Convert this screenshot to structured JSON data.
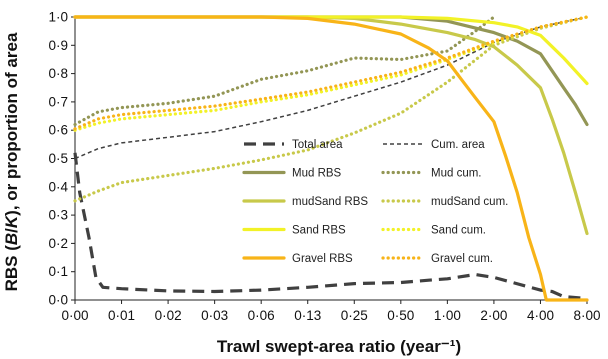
{
  "chart_data": {
    "type": "line",
    "xlabel": "Trawl swept-area ratio (year⁻¹)",
    "ylabel_parts": [
      "RBS (",
      "B",
      "/",
      "K",
      "), or proportion of area"
    ],
    "x_ticks": [
      "0·00",
      "0·01",
      "0·02",
      "0·03",
      "0·06",
      "0·13",
      "0·25",
      "0·50",
      "1·00",
      "2·00",
      "4·00",
      "8·00"
    ],
    "y_ticks": [
      "0·0",
      "0·1",
      "0·2",
      "0·3",
      "0·4",
      "0·5",
      "0·6",
      "0·7",
      "0·8",
      "0·9",
      "1·0"
    ],
    "x_tick_values": [
      0,
      0.01,
      0.02,
      0.03,
      0.06,
      0.13,
      0.25,
      0.5,
      1.0,
      2.0,
      4.0,
      8.0
    ],
    "ylim": [
      0,
      1
    ],
    "grid": false,
    "legend_position": "center-right",
    "series": [
      {
        "name": "Total area",
        "color": "#404040",
        "dash": "long-dash",
        "x": [
          0,
          0.001,
          0.003,
          0.0045,
          0.006,
          0.01,
          0.02,
          0.03,
          0.06,
          0.13,
          0.25,
          0.5,
          0.8,
          1.0,
          1.6,
          2.0,
          4.0,
          5.0,
          6.0,
          8.0
        ],
        "y": [
          0.52,
          0.38,
          0.22,
          0.08,
          0.045,
          0.04,
          0.032,
          0.03,
          0.035,
          0.045,
          0.058,
          0.062,
          0.07,
          0.075,
          0.09,
          0.08,
          0.035,
          0.03,
          0.012,
          0.005
        ]
      },
      {
        "name": "Cum. area",
        "color": "#404040",
        "dash": "short-dash",
        "x": [
          0,
          0.005,
          0.01,
          0.02,
          0.03,
          0.06,
          0.13,
          0.25,
          0.5,
          1.0,
          2.0,
          4.0,
          8.0
        ],
        "y": [
          0.5,
          0.535,
          0.555,
          0.575,
          0.595,
          0.63,
          0.67,
          0.72,
          0.77,
          0.83,
          0.91,
          0.965,
          1.0
        ]
      },
      {
        "name": "Mud RBS",
        "color": "#939655",
        "dash": "solid",
        "x": [
          0,
          0.5,
          1.0,
          2.0,
          3.0,
          4.0,
          5.0,
          6.0,
          7.0,
          8.0
        ],
        "y": [
          1.0,
          1.0,
          0.985,
          0.945,
          0.915,
          0.87,
          0.81,
          0.75,
          0.69,
          0.62
        ]
      },
      {
        "name": "Mud cum.",
        "color": "#939655",
        "dash": "dot",
        "x": [
          0,
          0.005,
          0.01,
          0.02,
          0.03,
          0.06,
          0.13,
          0.25,
          0.5,
          1.0,
          1.6,
          2.0
        ],
        "y": [
          0.62,
          0.665,
          0.68,
          0.695,
          0.72,
          0.78,
          0.81,
          0.855,
          0.85,
          0.88,
          0.95,
          1.0
        ]
      },
      {
        "name": "mudSand RBS",
        "color": "#c8c94a",
        "dash": "solid",
        "x": [
          0,
          0.13,
          0.25,
          0.5,
          1.0,
          1.6,
          2.0,
          3.0,
          4.0,
          5.0,
          6.0,
          7.0,
          8.0
        ],
        "y": [
          1.0,
          1.0,
          0.995,
          0.975,
          0.945,
          0.92,
          0.895,
          0.83,
          0.75,
          0.64,
          0.52,
          0.38,
          0.235
        ]
      },
      {
        "name": "mudSand cum.",
        "color": "#c8c94a",
        "dash": "dot",
        "x": [
          0,
          0.005,
          0.01,
          0.02,
          0.03,
          0.06,
          0.13,
          0.25,
          0.5,
          1.0,
          2.0,
          4.0,
          8.0
        ],
        "y": [
          0.35,
          0.385,
          0.415,
          0.44,
          0.465,
          0.495,
          0.53,
          0.59,
          0.66,
          0.77,
          0.9,
          0.96,
          1.0
        ]
      },
      {
        "name": "Sand RBS",
        "color": "#f2f227",
        "dash": "solid",
        "x": [
          0,
          0.5,
          1.0,
          2.0,
          3.0,
          4.0,
          5.0,
          6.0,
          7.0,
          8.0
        ],
        "y": [
          1.0,
          1.0,
          0.995,
          0.98,
          0.965,
          0.935,
          0.895,
          0.855,
          0.81,
          0.765
        ]
      },
      {
        "name": "Sand cum.",
        "color": "#f2f227",
        "dash": "dot",
        "x": [
          0,
          0.005,
          0.01,
          0.02,
          0.03,
          0.06,
          0.13,
          0.25,
          0.5,
          1.0,
          2.0,
          4.0,
          8.0
        ],
        "y": [
          0.6,
          0.625,
          0.64,
          0.655,
          0.67,
          0.7,
          0.725,
          0.76,
          0.795,
          0.85,
          0.91,
          0.965,
          1.0
        ]
      },
      {
        "name": "Gravel RBS",
        "color": "#f8b418",
        "dash": "solid",
        "x": [
          0,
          0.06,
          0.13,
          0.25,
          0.5,
          0.8,
          1.0,
          1.3,
          1.6,
          2.0,
          2.5,
          3.0,
          3.5,
          4.0,
          4.5,
          6.0,
          8.0
        ],
        "y": [
          1.0,
          1.0,
          0.995,
          0.975,
          0.94,
          0.89,
          0.845,
          0.78,
          0.715,
          0.63,
          0.51,
          0.38,
          0.22,
          0.09,
          0.0,
          0.0,
          0.0
        ]
      },
      {
        "name": "Gravel cum.",
        "color": "#f8b418",
        "dash": "dot",
        "x": [
          0,
          0.005,
          0.01,
          0.02,
          0.03,
          0.06,
          0.13,
          0.25,
          0.5,
          1.0,
          2.0,
          4.0,
          8.0
        ],
        "y": [
          0.605,
          0.64,
          0.655,
          0.67,
          0.685,
          0.71,
          0.735,
          0.77,
          0.805,
          0.855,
          0.915,
          0.965,
          1.0
        ]
      }
    ]
  }
}
